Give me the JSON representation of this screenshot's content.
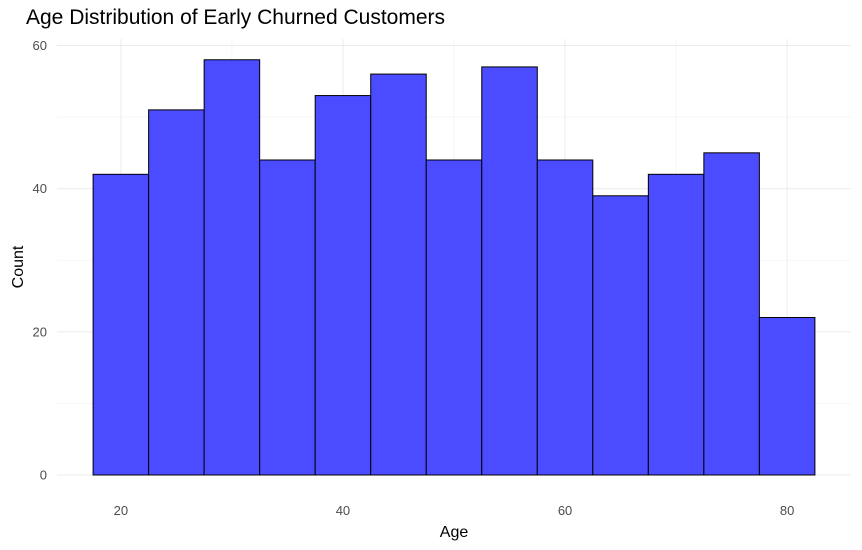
{
  "chart_data": {
    "type": "bar",
    "title": "Age Distribution of Early Churned Customers",
    "xlabel": "Age",
    "ylabel": "Count",
    "bin_width": 5,
    "bins": [
      {
        "x_start": 17.5,
        "x_end": 22.5,
        "count": 42
      },
      {
        "x_start": 22.5,
        "x_end": 27.5,
        "count": 51
      },
      {
        "x_start": 27.5,
        "x_end": 32.5,
        "count": 58
      },
      {
        "x_start": 32.5,
        "x_end": 37.5,
        "count": 44
      },
      {
        "x_start": 37.5,
        "x_end": 42.5,
        "count": 53
      },
      {
        "x_start": 42.5,
        "x_end": 47.5,
        "count": 56
      },
      {
        "x_start": 47.5,
        "x_end": 52.5,
        "count": 44
      },
      {
        "x_start": 52.5,
        "x_end": 57.5,
        "count": 57
      },
      {
        "x_start": 57.5,
        "x_end": 62.5,
        "count": 44
      },
      {
        "x_start": 62.5,
        "x_end": 67.5,
        "count": 39
      },
      {
        "x_start": 67.5,
        "x_end": 72.5,
        "count": 42
      },
      {
        "x_start": 72.5,
        "x_end": 77.5,
        "count": 45
      },
      {
        "x_start": 77.5,
        "x_end": 82.5,
        "count": 22
      }
    ],
    "xlim": [
      14.25,
      85.75
    ],
    "ylim": [
      0,
      60.9
    ],
    "x_ticks": [
      20,
      40,
      60,
      80
    ],
    "y_ticks": [
      0,
      20,
      40,
      60
    ],
    "grid": true,
    "bar_color": "#4b4bff",
    "bar_edge_color": "#000000"
  }
}
